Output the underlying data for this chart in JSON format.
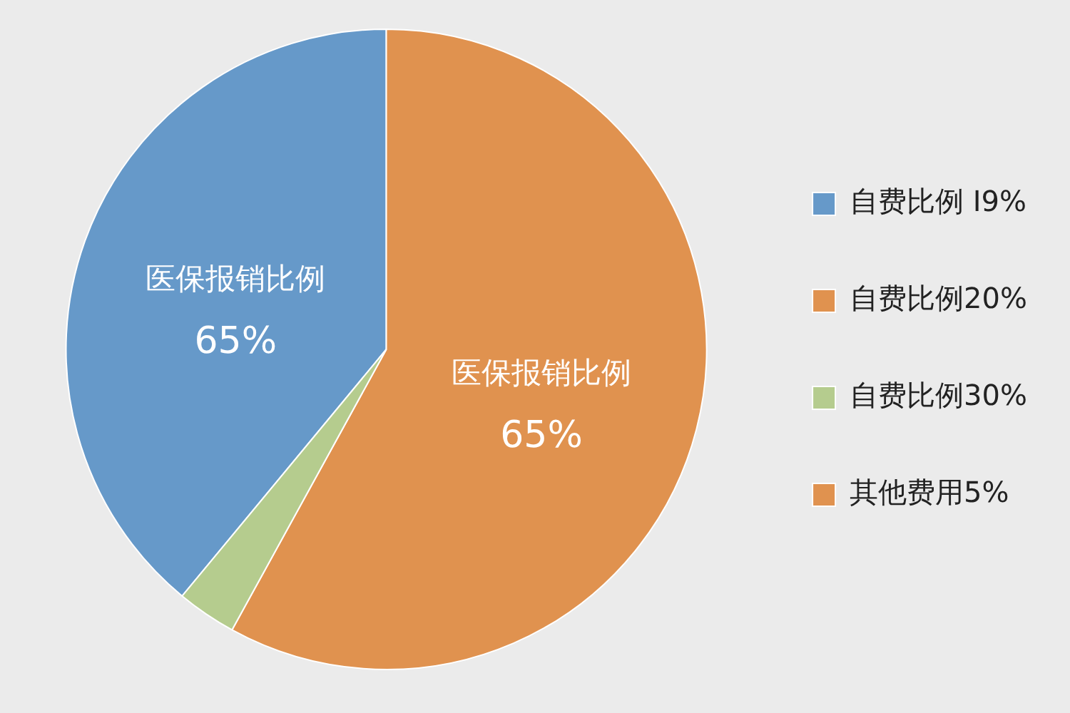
{
  "chart_data": {
    "type": "pie",
    "categories": [
      "自费比例 I9%",
      "自费比例20%",
      "自费比例30%",
      "其他费用5%"
    ],
    "values": [
      39,
      58,
      3,
      0
    ],
    "colors": [
      "#6699c9",
      "#e0924f",
      "#b5cc8e",
      "#e0924f"
    ],
    "annotations": [
      "医保报销比例\n65%",
      "医保报销比例\n65%"
    ],
    "legend": "right"
  }
}
